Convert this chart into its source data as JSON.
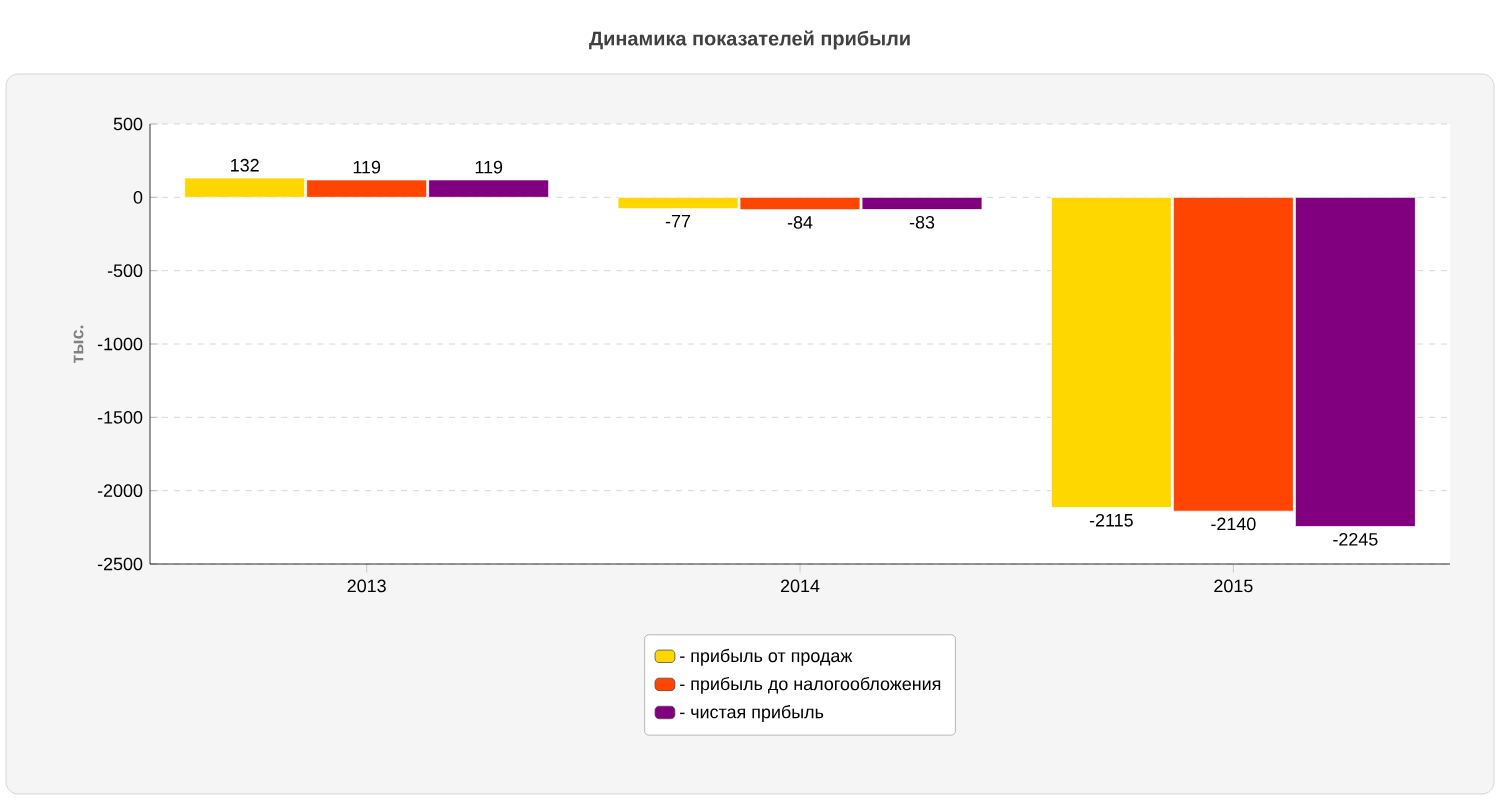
{
  "chart_data": {
    "type": "bar",
    "title": "Динамика показателей прибыли",
    "ylabel": "тыс.",
    "categories": [
      "2013",
      "2014",
      "2015"
    ],
    "series": [
      {
        "name": "- прибыль от продаж",
        "color": "#ffd700",
        "values": [
          132,
          -77,
          -2115
        ]
      },
      {
        "name": "- прибыль до налогообложения",
        "color": "#ff4500",
        "values": [
          119,
          -84,
          -2140
        ]
      },
      {
        "name": "- чистая прибыль",
        "color": "#800080",
        "values": [
          119,
          -83,
          -2245
        ]
      }
    ],
    "ylim": [
      -2500,
      500
    ],
    "yticks": [
      -2500,
      -2000,
      -1500,
      -1000,
      -500,
      0,
      500
    ],
    "grid": "y",
    "legend": "bottom",
    "data_labels": true
  }
}
